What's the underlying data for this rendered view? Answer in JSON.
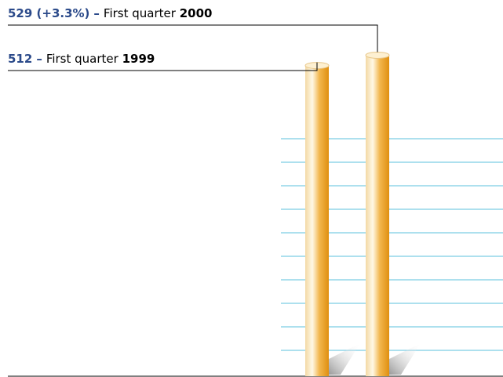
{
  "chart_data": {
    "type": "bar",
    "categories": [
      "First quarter 1999",
      "First quarter 2000"
    ],
    "values": [
      512,
      529
    ],
    "value_labels": [
      "512",
      "529 (+3.3%)"
    ],
    "separator": "–",
    "ylim": [
      0,
      620
    ]
  }
}
